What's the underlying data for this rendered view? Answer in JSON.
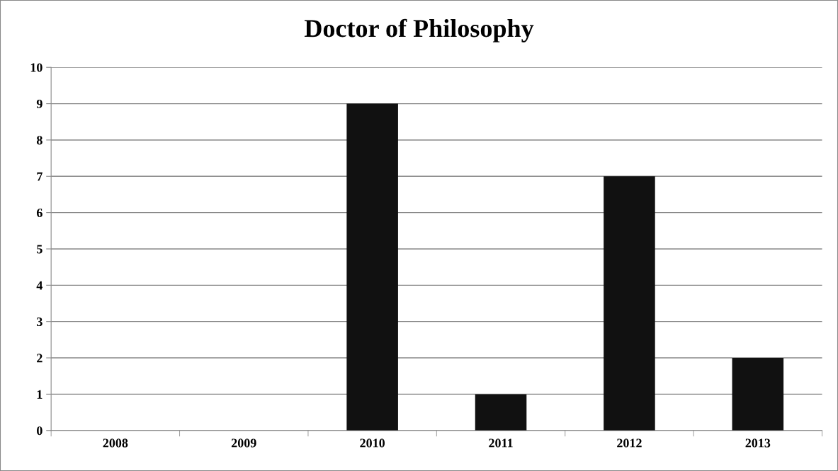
{
  "chart_data": {
    "type": "bar",
    "title": "Doctor of Philosophy",
    "categories": [
      "2008",
      "2009",
      "2010",
      "2011",
      "2012",
      "2013"
    ],
    "values": [
      0,
      0,
      9,
      1,
      7,
      2
    ],
    "color": "#111111",
    "ylim": [
      0,
      10
    ],
    "yticks": [
      0,
      1,
      2,
      3,
      4,
      5,
      6,
      7,
      8,
      9,
      10
    ],
    "grid": "y",
    "legend": false
  }
}
